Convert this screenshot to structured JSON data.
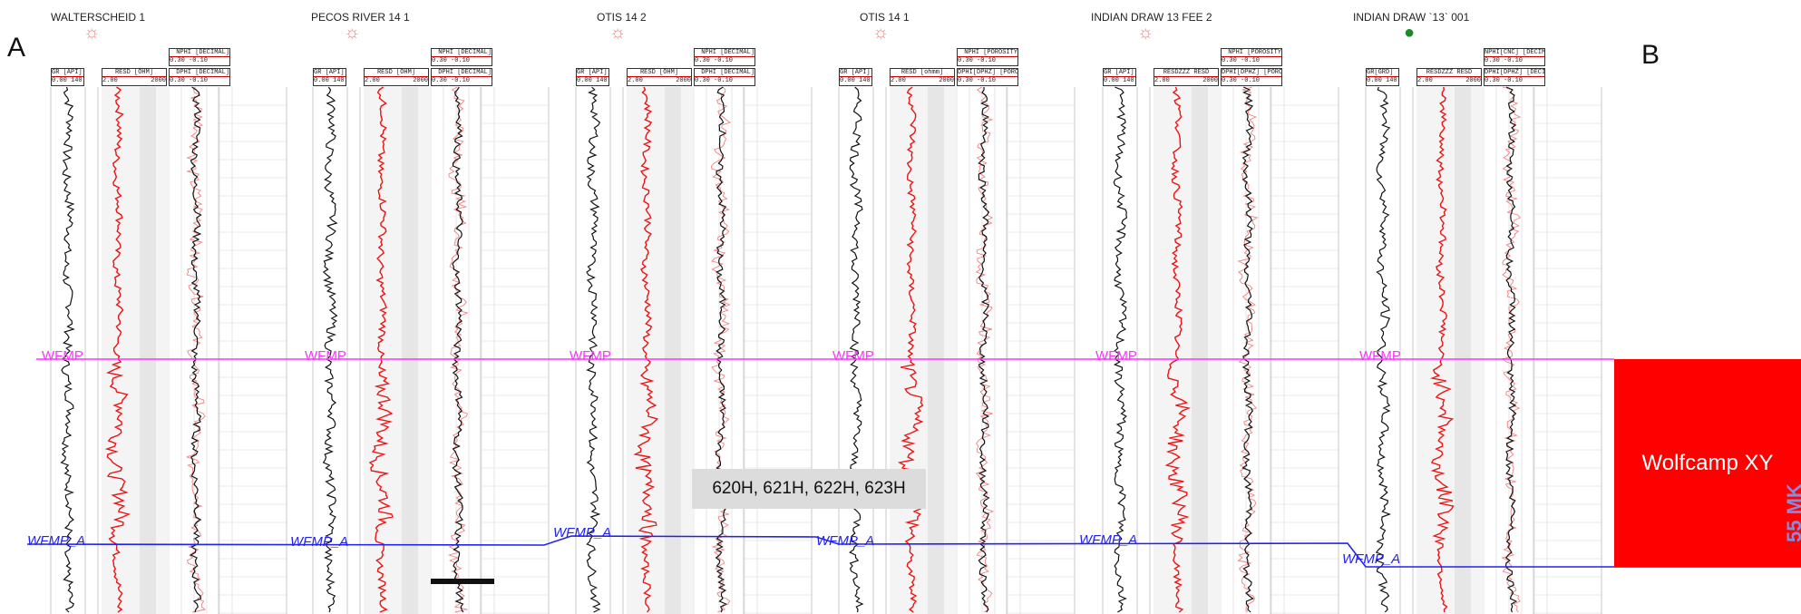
{
  "panel_labels": {
    "left": "A",
    "right": "B"
  },
  "wells": [
    {
      "name": "WALTERSCHEID 1",
      "symbol": "sun-icon",
      "headers": {
        "gr": "GR [API]",
        "gr_scale": "0.00 140",
        "res": "RESD [OHM]",
        "res_scale_left": "2.00",
        "res_scale_right": "2000",
        "por_top": "NPHI [DECIMAL]",
        "por_top_scale": "0.30 -0.10",
        "por_bottom": "DPHI [DECIMAL]",
        "por_bottom_scale": "0.30 -0.10"
      }
    },
    {
      "name": "PECOS RIVER 14 1",
      "symbol": "sun-icon",
      "headers": {
        "gr": "GR [API]",
        "gr_scale": "0.00 140",
        "res": "RESD [OHM]",
        "res_scale_left": "2.00",
        "res_scale_right": "2000",
        "por_top": "NPHI [DECIMAL]",
        "por_top_scale": "0.30 -0.10",
        "por_bottom": "DPHI [DECIMAL]",
        "por_bottom_scale": "0.30 -0.10"
      }
    },
    {
      "name": "OTIS 14 2",
      "symbol": "sun-icon",
      "headers": {
        "gr": "GR [API]",
        "gr_scale": "0.00 140",
        "res": "RESD [OHM]",
        "res_scale_left": "2.00",
        "res_scale_right": "2000",
        "por_top": "NPHI [DECIMAL]",
        "por_top_scale": "0.30 -0.10",
        "por_bottom": "DPHI [DECIMAL]",
        "por_bottom_scale": "0.30 -0.10"
      }
    },
    {
      "name": "OTIS 14 1",
      "symbol": "sun-icon",
      "headers": {
        "gr": "GR [API]",
        "gr_scale": "0.00 140",
        "res": "RESD [ohmm]",
        "res_scale_left": "2.00",
        "res_scale_right": "2000",
        "por_top": "NPHI [POROSITY",
        "por_top_scale": "0.30 -0.10",
        "por_bottom": "DPHI[DPHZ] [PORO",
        "por_bottom_scale": "0.30 -0.10"
      }
    },
    {
      "name": "INDIAN DRAW 13 FEE 2",
      "symbol": "sun-icon",
      "headers": {
        "gr": "GR [API]",
        "gr_scale": "0.00 140",
        "res": "RESDZZZ RESD",
        "res_scale_left": "2.00",
        "res_scale_right": "2000",
        "por_top": "NPHI [POROSITY",
        "por_top_scale": "0.30 -0.10",
        "por_bottom": "DPHI[DPHZ] [PORO",
        "por_bottom_scale": "0.30 -0.10"
      }
    },
    {
      "name": "INDIAN DRAW `13` 001",
      "symbol": "dot-icon",
      "headers": {
        "gr": "GR[GRD]",
        "gr_scale": "0.00 140",
        "res": "RESDZZZ RESD",
        "res_scale_left": "2.00",
        "res_scale_right": "2000",
        "por_top": "NPHI[CNC] [DECIM",
        "por_top_scale": "0.30 -0.10",
        "por_bottom": "DPHI[DPHZ] [DECIM",
        "por_bottom_scale": "0.30 -0.10"
      }
    }
  ],
  "tops": {
    "upper": {
      "label": "WFMP",
      "color": "#ff33ff"
    },
    "lower": {
      "labels": [
        "WFMP_A",
        "WFMP_A",
        "WFMP_A",
        "WFMP_A",
        "WFMP_A",
        "WFMP_A"
      ],
      "color": "#2222ee"
    }
  },
  "zone": {
    "label": "Wolfcamp XY",
    "color": "#ff0000"
  },
  "well_tag": "620H, 621H, 622H, 623H",
  "watermark": "55 MK",
  "colors": {
    "gr_curve": "#111111",
    "res_curve": "#ee1111",
    "por_curve_light": "#f08080",
    "por_curve_dark": "#111111",
    "grid": "#d6d6d6"
  }
}
